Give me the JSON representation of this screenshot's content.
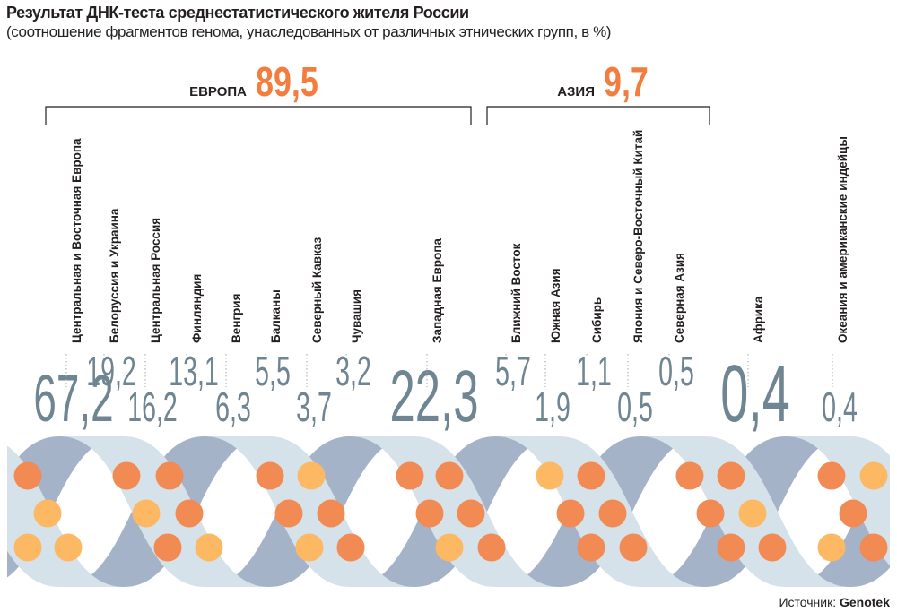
{
  "title": "Результат ДНК-теста среднестатистического жителя России",
  "subtitle": "(соотношение фрагментов генома, унаследованных от различных этнических групп, в %)",
  "source_label": "Источник:",
  "source_name": "Genotek",
  "colors": {
    "accent_orange": "#f37d3f",
    "circle_orange": "#f28a54",
    "circle_yellow": "#fdb864",
    "value_gray": "#6f8591",
    "strand_light": "#d6e2ea",
    "strand_dark": "#a5b3c9"
  },
  "chart_data": {
    "type": "bar",
    "groups": [
      {
        "name": "ЕВРОПА",
        "value": "89,5"
      },
      {
        "name": "АЗИЯ",
        "value": "9,7"
      }
    ],
    "categories": [
      "Центральная и Восточная Европа",
      "Белоруссия и Украина",
      "Центральная Россия",
      "Финляндия",
      "Венгрия",
      "Балканы",
      "Северный Кавказ",
      "Чувашия",
      "Западная Европа",
      "Ближний Восток",
      "Южная Азия",
      "Сибирь",
      "Япония и Северо-Восточный Китай",
      "Северная Азия",
      "Африка",
      "Океания и американские индейцы"
    ],
    "labels": [
      "67,2",
      "19,2",
      "16,2",
      "13,1",
      "6,3",
      "5,5",
      "3,7",
      "3,2",
      "22,3",
      "5,7",
      "1,9",
      "1,1",
      "0,5",
      "0,5",
      "0,4",
      "0,4"
    ],
    "values": [
      67.2,
      19.2,
      16.2,
      13.1,
      6.3,
      5.5,
      3.7,
      3.2,
      22.3,
      5.7,
      1.9,
      1.1,
      0.5,
      0.5,
      0.4,
      0.4
    ]
  }
}
